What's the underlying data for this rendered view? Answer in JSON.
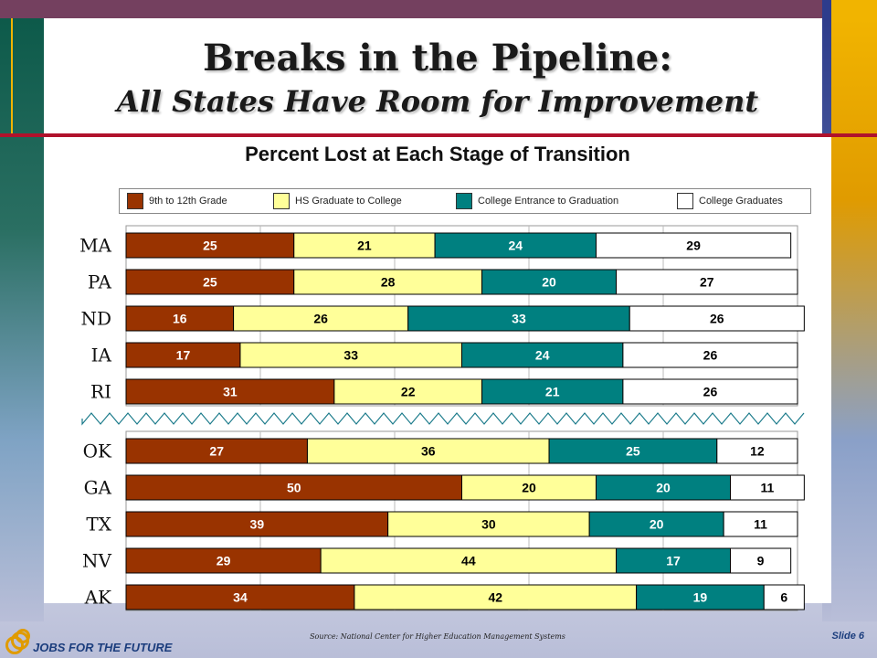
{
  "slide": {
    "title_line1": "Breaks in the Pipeline:",
    "title_line2": "All States Have Room for Improvement",
    "source": "Source: National Center for Higher Education Management Systems",
    "slide_number": "Slide 6",
    "logo_text": "JOBS FOR THE FUTURE"
  },
  "colors": {
    "grade9to12": "#993300",
    "hs_to_college": "#ffff99",
    "college_to_grad": "#008080",
    "graduates": "#ffffff"
  },
  "chart_data": {
    "type": "bar",
    "orientation": "horizontal",
    "stacked": true,
    "title": "Percent Lost at Each Stage of Transition",
    "legend": [
      "9th to 12th Grade",
      "HS Graduate to College",
      "College Entrance to Graduation",
      "College Graduates"
    ],
    "legend_position": "top",
    "grid": true,
    "xlim": [
      0,
      100
    ],
    "groups": [
      {
        "categories": [
          "MA",
          "PA",
          "ND",
          "IA",
          "RI"
        ],
        "series": [
          {
            "name": "9th to 12th Grade",
            "values": [
              25,
              25,
              16,
              17,
              31
            ]
          },
          {
            "name": "HS Graduate to College",
            "values": [
              21,
              28,
              26,
              33,
              22
            ]
          },
          {
            "name": "College Entrance to Graduation",
            "values": [
              24,
              20,
              33,
              24,
              21
            ]
          },
          {
            "name": "College Graduates",
            "values": [
              29,
              27,
              26,
              26,
              26
            ]
          }
        ]
      },
      {
        "categories": [
          "OK",
          "GA",
          "TX",
          "NV",
          "AK"
        ],
        "series": [
          {
            "name": "9th to 12th Grade",
            "values": [
              27,
              50,
              39,
              29,
              34
            ]
          },
          {
            "name": "HS Graduate to College",
            "values": [
              36,
              20,
              30,
              44,
              42
            ]
          },
          {
            "name": "College Entrance to Graduation",
            "values": [
              25,
              20,
              20,
              17,
              19
            ]
          },
          {
            "name": "College Graduates",
            "values": [
              12,
              11,
              11,
              9,
              6
            ]
          }
        ]
      }
    ]
  }
}
